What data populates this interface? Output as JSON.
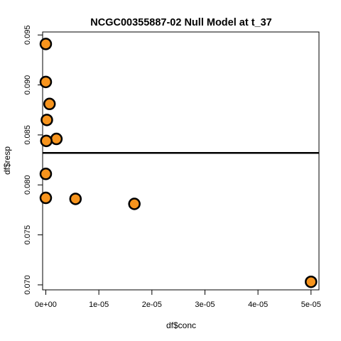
{
  "chart_data": {
    "type": "scatter",
    "title": "NCGC00355887-02 Null Model at t_37",
    "xlabel": "df$conc",
    "ylabel": "df$resp",
    "xlim": [
      -6e-07,
      5.15e-05
    ],
    "ylim": [
      0.0695,
      0.0953
    ],
    "x_ticks": [
      0,
      1e-05,
      2e-05,
      3e-05,
      4e-05,
      5e-05
    ],
    "x_tick_labels": [
      "0e+00",
      "1e-05",
      "2e-05",
      "3e-05",
      "4e-05",
      "5e-05"
    ],
    "y_ticks": [
      0.07,
      0.075,
      0.08,
      0.085,
      0.09,
      0.095
    ],
    "y_tick_labels": [
      "0.070",
      "0.075",
      "0.080",
      "0.085",
      "0.090",
      "0.095"
    ],
    "points": [
      {
        "x": 0.0,
        "y": 0.0941
      },
      {
        "x": 0.0,
        "y": 0.0903
      },
      {
        "x": 7e-07,
        "y": 0.0881
      },
      {
        "x": 2e-07,
        "y": 0.0865
      },
      {
        "x": 2e-06,
        "y": 0.0846
      },
      {
        "x": 1e-07,
        "y": 0.0844
      },
      {
        "x": 0.0,
        "y": 0.0811
      },
      {
        "x": 0.0,
        "y": 0.0787
      },
      {
        "x": 5.6e-06,
        "y": 0.0786
      },
      {
        "x": 1.67e-05,
        "y": 0.0781
      },
      {
        "x": 5e-05,
        "y": 0.0703
      }
    ],
    "hline": 0.0832,
    "grid": false,
    "legend": "none",
    "colors": {
      "point_fill": "#F7941D",
      "point_stroke": "#000000",
      "line": "#000000"
    }
  }
}
